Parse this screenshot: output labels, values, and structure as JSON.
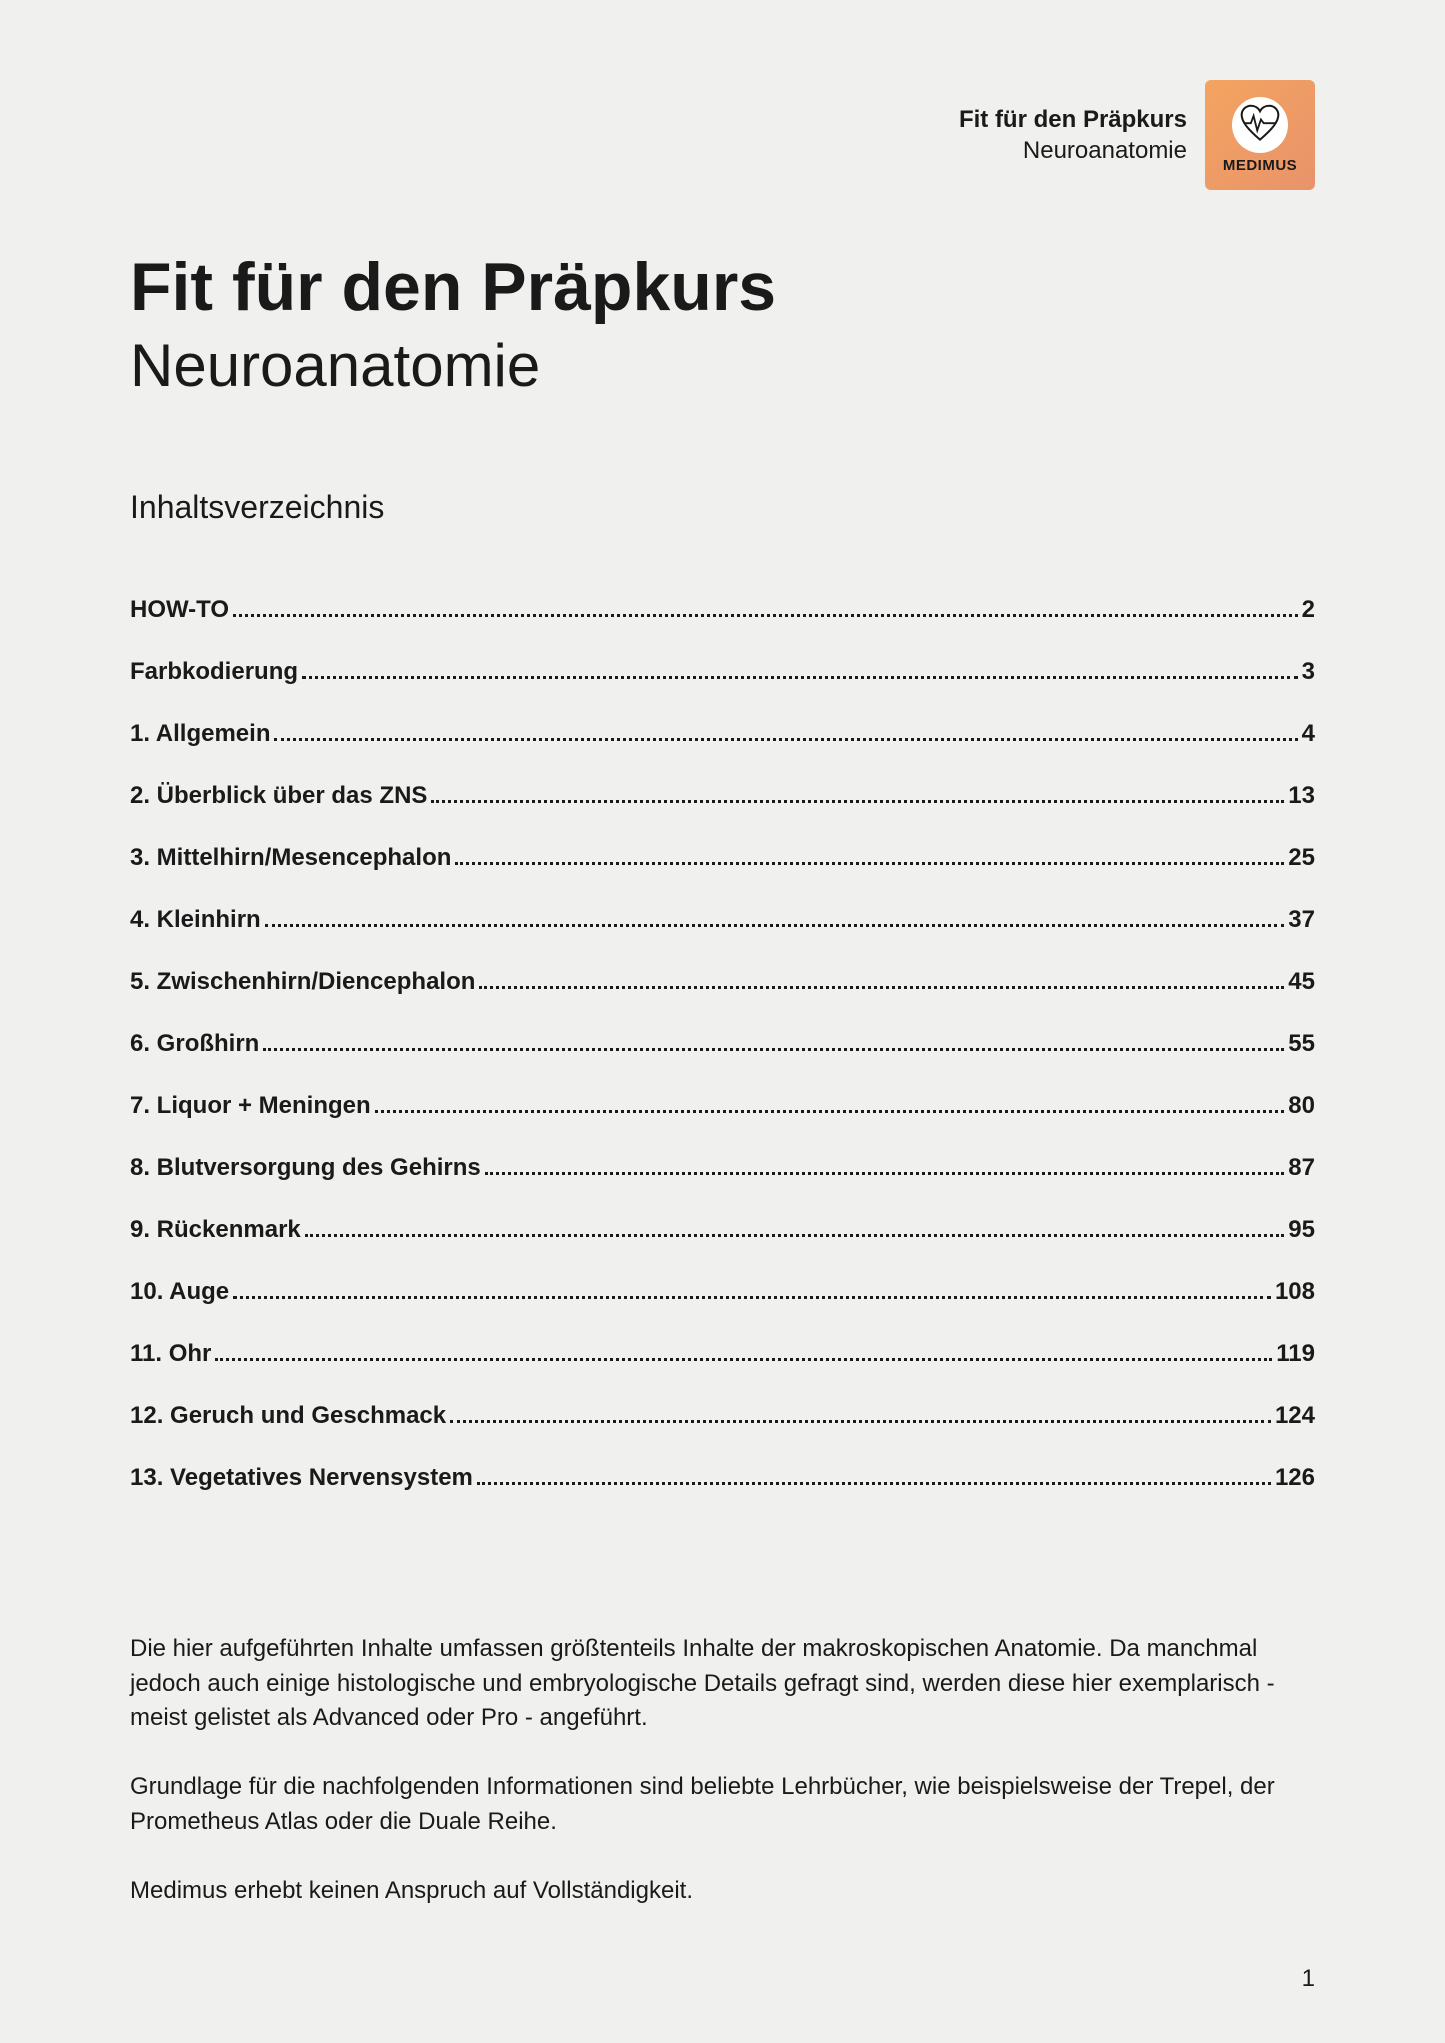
{
  "header": {
    "line1": "Fit für den Präpkurs",
    "line2": "Neuroanatomie",
    "logo_label": "MEDIMUS",
    "logo_bg": "#e8a06b",
    "logo_heart_bg": "#ffffff"
  },
  "title": {
    "main": "Fit für den Präpkurs",
    "sub": "Neuroanatomie"
  },
  "toc_heading": "Inhaltsverzeichnis",
  "toc": [
    {
      "label": "HOW-TO",
      "page": "2"
    },
    {
      "label": "Farbkodierung",
      "page": "3"
    },
    {
      "label": "1. Allgemein",
      "page": "4"
    },
    {
      "label": "2. Überblick über das ZNS",
      "page": "13"
    },
    {
      "label": "3. Mittelhirn/Mesencephalon",
      "page": "25"
    },
    {
      "label": "4. Kleinhirn",
      "page": "37"
    },
    {
      "label": "5. Zwischenhirn/Diencephalon",
      "page": "45"
    },
    {
      "label": "6. Großhirn",
      "page": "55"
    },
    {
      "label": "7. Liquor + Meningen",
      "page": "80"
    },
    {
      "label": "8. Blutversorgung des Gehirns",
      "page": "87"
    },
    {
      "label": "9. Rückenmark",
      "page": "95"
    },
    {
      "label": "10. Auge",
      "page": "108"
    },
    {
      "label": "11. Ohr",
      "page": "119"
    },
    {
      "label": "12. Geruch und Geschmack",
      "page": "124"
    },
    {
      "label": "13. Vegetatives Nervensystem",
      "page": "126"
    }
  ],
  "paragraphs": [
    "Die hier aufgeführten Inhalte umfassen größtenteils Inhalte der makroskopischen Anatomie. Da manchmal jedoch auch einige histologische und embryologische Details gefragt sind, werden diese hier exemplarisch - meist gelistet als Advanced oder Pro - angeführt.",
    "Grundlage für die nachfolgenden Informationen sind beliebte Lehrbücher, wie beispielsweise der Trepel, der Prometheus Atlas oder die Duale Reihe.",
    "Medimus erhebt keinen Anspruch auf Vollständigkeit."
  ],
  "page_number": "1",
  "colors": {
    "page_bg": "#f0f0ee",
    "text": "#1a1a1a"
  },
  "typography": {
    "body_fontsize": 24,
    "title_main_fontsize": 68,
    "title_sub_fontsize": 60,
    "toc_heading_fontsize": 32,
    "toc_row_fontsize": 24,
    "font_family": "Comic Sans MS / handwritten"
  }
}
